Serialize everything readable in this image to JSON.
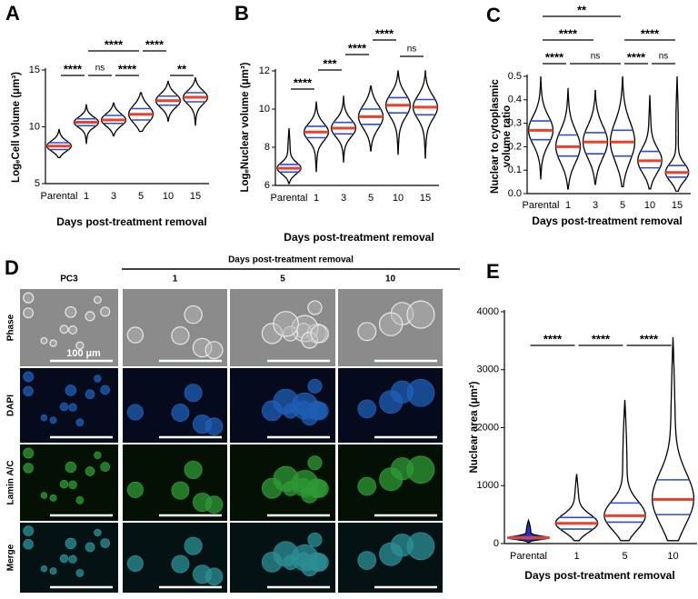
{
  "chart_data": [
    {
      "type": "violin",
      "panel": "A",
      "y_label": "LogₑCell volume (μm³)",
      "x_label": "Days post-treatment removal",
      "categories": [
        "Parental",
        "1",
        "3",
        "5",
        "10",
        "15"
      ],
      "min": [
        7.3,
        8.5,
        9.2,
        9.6,
        10.5,
        10.1
      ],
      "q1": [
        8.0,
        10.1,
        10.3,
        10.6,
        11.9,
        12.2
      ],
      "median": [
        8.3,
        10.4,
        10.6,
        11.1,
        12.3,
        12.6
      ],
      "q3": [
        8.6,
        10.7,
        11.0,
        11.6,
        12.7,
        13.0
      ],
      "max": [
        9.8,
        12.0,
        12.1,
        13.0,
        14.0,
        14.3
      ],
      "ylim": [
        5,
        15
      ],
      "yticks": [
        5,
        10,
        15
      ],
      "color": "#000000",
      "median_color": "#e8412c",
      "quartile_color": "#2b4bd6",
      "comparisons": [
        "****",
        "ns",
        "****",
        "**",
        "****",
        "****"
      ]
    },
    {
      "type": "violin",
      "panel": "B",
      "y_label": "LogₑNuclear volume (μm³)",
      "x_label": "Days post-treatment removal",
      "categories": [
        "Parental",
        "1",
        "3",
        "5",
        "10",
        "15"
      ],
      "min": [
        6.1,
        6.7,
        7.2,
        7.8,
        7.6,
        7.4
      ],
      "q1": [
        6.7,
        8.5,
        8.7,
        9.2,
        9.8,
        9.7
      ],
      "median": [
        6.9,
        8.8,
        9.0,
        9.6,
        10.2,
        10.1
      ],
      "q3": [
        7.1,
        9.1,
        9.3,
        10.0,
        10.6,
        10.5
      ],
      "max": [
        9.0,
        10.4,
        10.7,
        11.2,
        12.0,
        12.0
      ],
      "ylim": [
        6,
        12
      ],
      "yticks": [
        6,
        8,
        10,
        12
      ],
      "color": "#000000",
      "median_color": "#e8412c",
      "quartile_color": "#2b4bd6",
      "comparisons": [
        "****",
        "***",
        "****",
        "****",
        "ns"
      ]
    },
    {
      "type": "violin",
      "panel": "C",
      "y_label": [
        "Nuclear to cytoplasmic",
        "volume ratio"
      ],
      "x_label": "Days post-treatment removal",
      "categories": [
        "Parental",
        "1",
        "3",
        "5",
        "10",
        "15"
      ],
      "min": [
        0.06,
        0.02,
        0.04,
        0.03,
        0.02,
        0.01
      ],
      "q1": [
        0.23,
        0.16,
        0.17,
        0.16,
        0.11,
        0.07
      ],
      "median": [
        0.27,
        0.2,
        0.22,
        0.22,
        0.14,
        0.09
      ],
      "q3": [
        0.31,
        0.25,
        0.26,
        0.27,
        0.18,
        0.12
      ],
      "max": [
        0.5,
        0.45,
        0.44,
        0.5,
        0.42,
        0.5
      ],
      "ylim": [
        0,
        0.5
      ],
      "yticks": [
        {
          "value": 0,
          "label": "0.0"
        },
        0.1,
        0.2,
        0.3,
        0.4,
        0.5
      ],
      "color": "#000000",
      "median_color": "#e8412c",
      "quartile_color": "#2b4bd6",
      "comparisons": [
        "****",
        "ns",
        "****",
        "ns",
        "****",
        "****",
        "**"
      ]
    },
    {
      "type": "violin",
      "panel": "E",
      "y_label": "Nuclear area (μm²)",
      "x_label": "Days post-treatment removal",
      "categories": [
        "Parental",
        "1",
        "5",
        "10"
      ],
      "min": [
        20,
        50,
        50,
        50
      ],
      "q1": [
        80,
        250,
        370,
        500
      ],
      "median": [
        100,
        350,
        480,
        760
      ],
      "q3": [
        120,
        450,
        700,
        1100
      ],
      "max": [
        400,
        1200,
        2480,
        3560
      ],
      "ylim": [
        0,
        4000
      ],
      "yticks": [
        0,
        1000,
        2000,
        3000,
        4000
      ],
      "color": "#000000",
      "median_color": "#e8412c",
      "quartile_color": "#2b4bd6",
      "fills": [
        "#2234c8",
        "none",
        "none",
        "none"
      ],
      "comparisons": [
        "****",
        "****",
        "****"
      ]
    }
  ],
  "microscopy": {
    "panel": "D",
    "header": "Days post-treatment removal",
    "columns": [
      "PC3",
      "1",
      "5",
      "10"
    ],
    "rows": [
      "Phase",
      "DAPI",
      "Lamin A/C",
      "Merge"
    ],
    "scale_bar": "100 µm"
  }
}
